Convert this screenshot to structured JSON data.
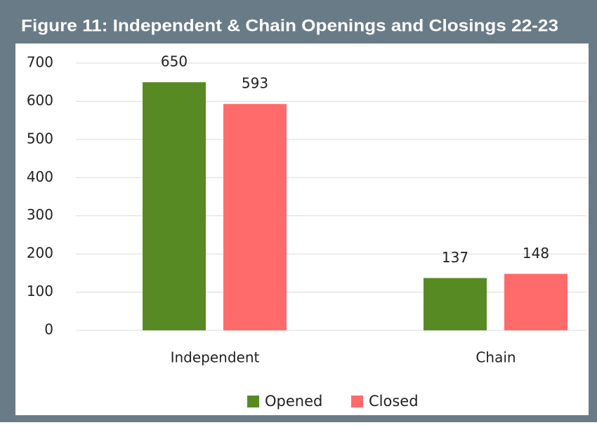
{
  "chart_data": {
    "type": "bar",
    "title": "Figure 11: Independent & Chain Openings and Closings 22-23",
    "categories": [
      "Independent",
      "Chain"
    ],
    "series": [
      {
        "name": "Opened",
        "color": "#588a24",
        "values": [
          650,
          137
        ]
      },
      {
        "name": "Closed",
        "color": "#ff6b6b",
        "values": [
          593,
          148
        ]
      }
    ],
    "ylim": [
      0,
      700
    ],
    "yticks": [
      0,
      100,
      200,
      300,
      400,
      500,
      600,
      700
    ],
    "grid": true,
    "legend": "bottom"
  }
}
